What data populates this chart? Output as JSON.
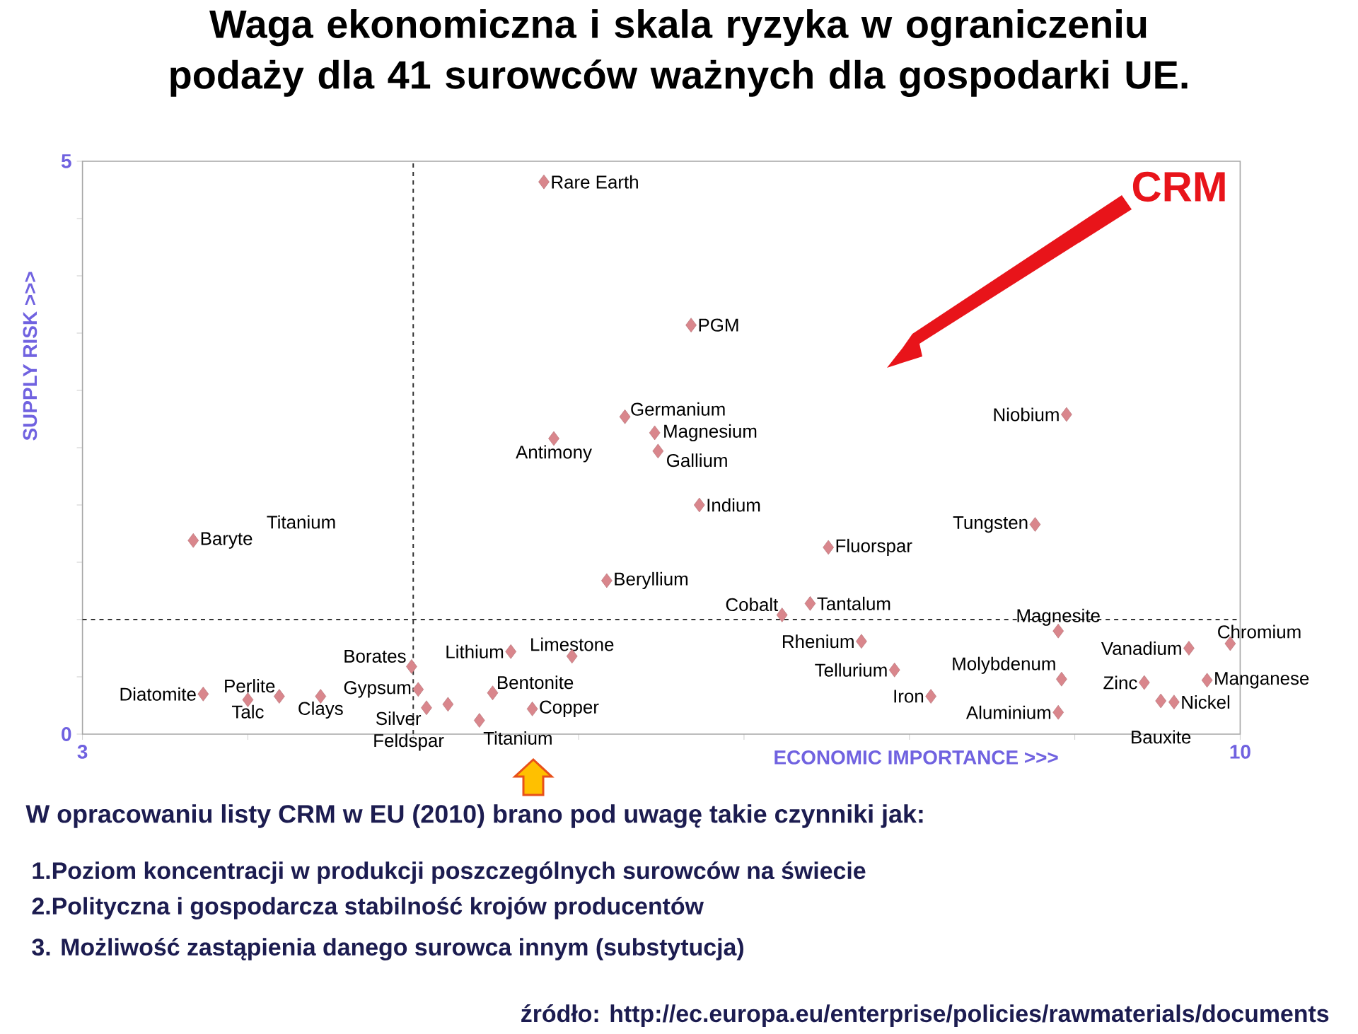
{
  "chart_data": {
    "type": "scatter",
    "title": "Waga ekonomiczna i skala ryzyka w ograniczeniu podaży dla 41 surowców ważnych dla gospodarki UE.",
    "xlabel": "ECONOMIC IMPORTANCE >>>",
    "ylabel": "SUPPLY RISK >>>",
    "xlim": [
      3,
      10
    ],
    "ylim": [
      0,
      5
    ],
    "xticks": [
      3,
      {
        "value": 4,
        "label": null
      },
      {
        "value": 5,
        "label": null
      },
      {
        "value": 6,
        "label": null
      },
      {
        "value": 7,
        "label": null
      },
      {
        "value": 8,
        "label": null
      },
      {
        "value": 9,
        "label": null
      },
      10
    ],
    "yticks": [
      0,
      {
        "value": 0.5,
        "label": null
      },
      {
        "value": 1,
        "label": null
      },
      {
        "value": 1.5,
        "label": null
      },
      {
        "value": 2,
        "label": null
      },
      {
        "value": 2.5,
        "label": null
      },
      {
        "value": 3,
        "label": null
      },
      {
        "value": 3.5,
        "label": null
      },
      {
        "value": 4,
        "label": null
      },
      {
        "value": 4.5,
        "label": null
      },
      5
    ],
    "marker": "diamond",
    "ref_lines": [
      {
        "axis": "x",
        "value": 5,
        "line_style": "dashed"
      },
      {
        "axis": "y",
        "value": 1,
        "line_style": "dashed"
      }
    ],
    "series": [
      {
        "color": "#d9868c",
        "x": [
          5.79,
          6.28,
          6.46,
          6.48,
          5.85,
          6.68,
          8.95,
          3.67,
          6.17,
          4.99,
          5.59,
          5.96,
          3.73,
          4.0,
          4.19,
          4.44,
          5.03,
          5.08,
          5.21,
          5.4,
          5.48,
          5.72,
          6.73,
          8.76,
          7.51,
          7.4,
          7.23,
          7.71,
          7.91,
          8.13,
          8.9,
          8.9,
          8.92,
          9.69,
          9.94,
          9.42,
          9.8,
          9.52,
          9.6
        ],
        "values": [
          4.82,
          2.77,
          2.63,
          2.47,
          2.58,
          3.57,
          2.79,
          1.69,
          1.34,
          0.59,
          0.72,
          0.68,
          0.35,
          0.3,
          0.33,
          0.33,
          0.39,
          0.23,
          0.26,
          0.12,
          0.36,
          0.22,
          2.0,
          1.83,
          1.63,
          1.14,
          1.04,
          0.81,
          0.56,
          0.33,
          0.19,
          0.9,
          0.48,
          0.75,
          0.79,
          0.45,
          0.47,
          0.29,
          0.28
        ],
        "value_labels": [
          "Rare Earth",
          "Germanium",
          "Magnesium",
          "Gallium",
          "Antimony",
          "PGM",
          "Niobium",
          "Baryte",
          "Beryllium",
          "Borates",
          "Lithium",
          "Limestone",
          "Diatomite",
          "Talc",
          "Perlite",
          "Clays",
          "Gypsum",
          "Silver",
          "Feldspar",
          "Titanium",
          "Bentonite",
          "Copper",
          "Indium",
          "Tungsten",
          "Fluorspar",
          "Tantalum",
          "Cobalt",
          "Rhenium",
          "Tellurium",
          "Iron",
          "Aluminium",
          "Magnesite",
          "Molybdenum",
          "Vanadium",
          "Chromium",
          "Zinc",
          "Manganese",
          "Bauxite",
          "Nickel"
        ]
      }
    ],
    "annotations": [
      "CRM",
      "Titanium",
      "W opracowaniu listy CRM  w EU (2010) brano pod uwagę takie czynniki jak:",
      "1.Poziom koncentracji  w  produkcji  poszczególnych surowców na świecie",
      "2.Polityczna i gospodarcza stabilność krojów producentów",
      "3. Możliwość zastąpienia  danego surowca innym (substytucja)",
      "**źródło: http://ec.europa.eu/enterprise/policies/rawmaterials/documents**"
    ]
  }
}
